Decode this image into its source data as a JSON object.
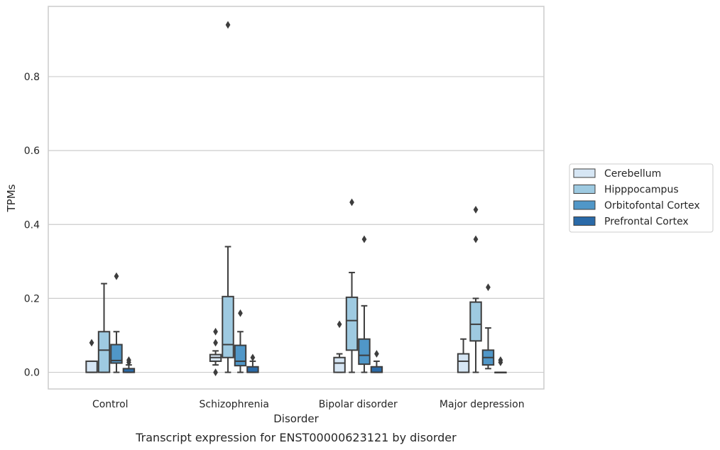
{
  "chart_data": {
    "type": "box",
    "caption": "Transcript expression for ENST00000623121 by disorder",
    "xlabel": "Disorder",
    "ylabel": "TPMs",
    "ylim": [
      -0.045,
      0.99
    ],
    "yticks": [
      0.0,
      0.2,
      0.4,
      0.6,
      0.8
    ],
    "ytick_labels": [
      "0.0",
      "0.2",
      "0.4",
      "0.6",
      "0.8"
    ],
    "grid": "horizontal",
    "legend_position": "right",
    "categories": [
      "Control",
      "Schizophrenia",
      "Bipolar disorder",
      "Major depression"
    ],
    "series": [
      {
        "name": "Cerebellum",
        "color": "#d6e6f4",
        "boxes": [
          {
            "whislo": 0.0,
            "q1": 0.0,
            "med": 0.0,
            "q3": 0.03,
            "whishi": 0.03,
            "fliers": [
              0.08
            ]
          },
          {
            "whislo": 0.02,
            "q1": 0.03,
            "med": 0.04,
            "q3": 0.048,
            "whishi": 0.058,
            "fliers": [
              0.11,
              0.08,
              0.0
            ]
          },
          {
            "whislo": 0.0,
            "q1": 0.0,
            "med": 0.025,
            "q3": 0.04,
            "whishi": 0.05,
            "fliers": [
              0.13
            ]
          },
          {
            "whislo": 0.0,
            "q1": 0.0,
            "med": 0.03,
            "q3": 0.05,
            "whishi": 0.09,
            "fliers": []
          }
        ]
      },
      {
        "name": "Hipppocampus",
        "color": "#9ecae1",
        "boxes": [
          {
            "whislo": 0.0,
            "q1": 0.0,
            "med": 0.06,
            "q3": 0.11,
            "whishi": 0.24,
            "fliers": []
          },
          {
            "whislo": 0.0,
            "q1": 0.04,
            "med": 0.075,
            "q3": 0.205,
            "whishi": 0.34,
            "fliers": [
              0.94
            ]
          },
          {
            "whislo": 0.0,
            "q1": 0.06,
            "med": 0.14,
            "q3": 0.203,
            "whishi": 0.27,
            "fliers": [
              0.46
            ]
          },
          {
            "whislo": 0.0,
            "q1": 0.085,
            "med": 0.13,
            "q3": 0.19,
            "whishi": 0.2,
            "fliers": [
              0.44,
              0.36
            ]
          }
        ]
      },
      {
        "name": "Orbitofontal Cortex",
        "color": "#5097c8",
        "boxes": [
          {
            "whislo": 0.0,
            "q1": 0.025,
            "med": 0.032,
            "q3": 0.075,
            "whishi": 0.11,
            "fliers": [
              0.26
            ]
          },
          {
            "whislo": 0.0,
            "q1": 0.018,
            "med": 0.03,
            "q3": 0.073,
            "whishi": 0.11,
            "fliers": [
              0.16
            ]
          },
          {
            "whislo": 0.0,
            "q1": 0.022,
            "med": 0.046,
            "q3": 0.09,
            "whishi": 0.18,
            "fliers": [
              0.36
            ]
          },
          {
            "whislo": 0.01,
            "q1": 0.02,
            "med": 0.04,
            "q3": 0.06,
            "whishi": 0.12,
            "fliers": [
              0.23
            ]
          }
        ]
      },
      {
        "name": "Prefrontal Cortex",
        "color": "#2a6aa8",
        "boxes": [
          {
            "whislo": 0.0,
            "q1": 0.0,
            "med": 0.0,
            "q3": 0.01,
            "whishi": 0.02,
            "fliers": [
              0.033,
              0.027
            ]
          },
          {
            "whislo": 0.0,
            "q1": 0.0,
            "med": 0.0,
            "q3": 0.015,
            "whishi": 0.03,
            "fliers": [
              0.04
            ]
          },
          {
            "whislo": 0.0,
            "q1": 0.0,
            "med": 0.0,
            "q3": 0.015,
            "whishi": 0.03,
            "fliers": [
              0.05
            ]
          },
          {
            "whislo": 0.0,
            "q1": 0.0,
            "med": 0.0,
            "q3": 0.0,
            "whishi": 0.0,
            "fliers": [
              0.033,
              0.027
            ]
          }
        ]
      }
    ]
  }
}
